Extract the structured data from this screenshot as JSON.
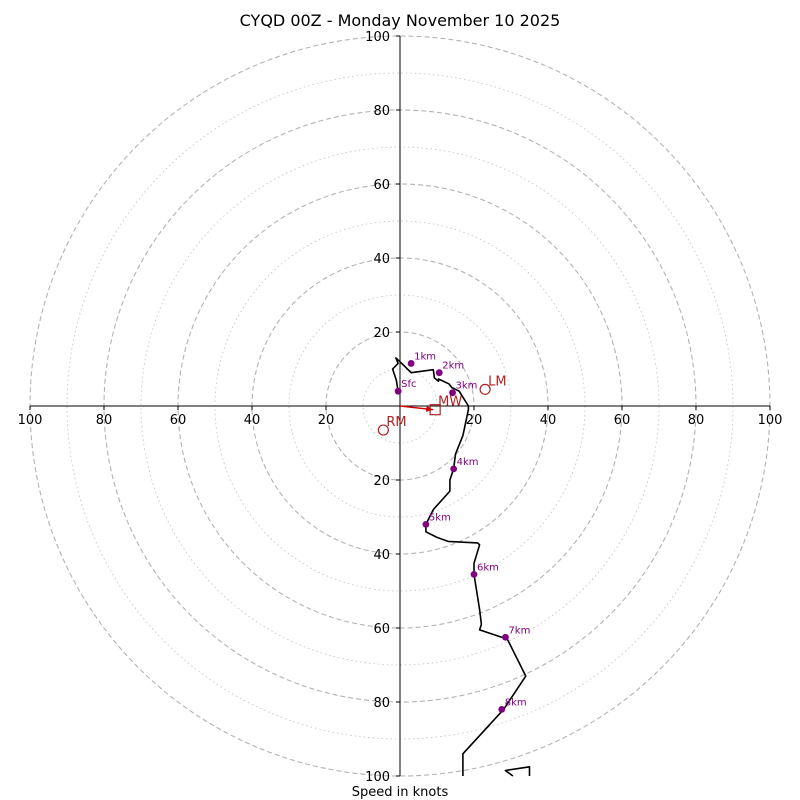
{
  "chart_data": {
    "type": "hodograph",
    "title": "CYQD 00Z - Monday November 10 2025",
    "xlabel": "Speed in knots",
    "range_max": 100,
    "ring_major": [
      20,
      40,
      60,
      80,
      100
    ],
    "ring_minor": [
      10,
      30,
      50,
      70,
      90
    ],
    "tick_labels": {
      "left": [
        "100",
        "80",
        "60",
        "40",
        "20"
      ],
      "right": [
        "20",
        "40",
        "60",
        "80",
        "100"
      ],
      "top": [
        "100",
        "80",
        "60",
        "40",
        "20"
      ],
      "bottom": [
        "20",
        "40",
        "60",
        "80",
        "100"
      ]
    },
    "trace": [
      [
        -0.5,
        4
      ],
      [
        -1,
        7
      ],
      [
        -2,
        10
      ],
      [
        -0.5,
        11.5
      ],
      [
        -1.1,
        13
      ],
      [
        1,
        11
      ],
      [
        3,
        9
      ],
      [
        9,
        9.8
      ],
      [
        9.3,
        7.6
      ],
      [
        10.4,
        6.7
      ],
      [
        10.4,
        7.3
      ],
      [
        13.2,
        6
      ],
      [
        14,
        5
      ],
      [
        16,
        4
      ],
      [
        18.5,
        0
      ],
      [
        18.5,
        -1
      ],
      [
        17,
        -8
      ],
      [
        15,
        -13
      ],
      [
        14.5,
        -17
      ],
      [
        13.5,
        -20
      ],
      [
        13.5,
        -23
      ],
      [
        9,
        -28
      ],
      [
        7,
        -32
      ],
      [
        7,
        -34
      ],
      [
        10,
        -35.5
      ],
      [
        13,
        -36.6
      ],
      [
        21,
        -37
      ],
      [
        21.5,
        -37.5
      ],
      [
        20,
        -42.5
      ],
      [
        20,
        -45.5
      ],
      [
        21.5,
        -55
      ],
      [
        22,
        -59
      ],
      [
        21.5,
        -60.5
      ],
      [
        29,
        -63
      ],
      [
        34,
        -73
      ],
      [
        28,
        -82
      ],
      [
        17,
        -94
      ],
      [
        17,
        -100
      ]
    ],
    "trace_tail": [
      [
        35,
        -100
      ],
      [
        35,
        -97.5
      ],
      [
        28.5,
        -98.5
      ],
      [
        30.5,
        -100
      ]
    ],
    "height_markers": [
      {
        "label": "Sfc",
        "u": -0.5,
        "v": 4
      },
      {
        "label": "1km",
        "u": 3,
        "v": 11.5
      },
      {
        "label": "2km",
        "u": 10.6,
        "v": 9
      },
      {
        "label": "3km",
        "u": 14.2,
        "v": 3.6
      },
      {
        "label": "4km",
        "u": 14.5,
        "v": -17
      },
      {
        "label": "5km",
        "u": 7,
        "v": -32
      },
      {
        "label": "6km",
        "u": 20,
        "v": -45.5
      },
      {
        "label": "7km",
        "u": 28.5,
        "v": -62.5
      },
      {
        "label": "8km",
        "u": 27.5,
        "v": -82
      }
    ],
    "motion_markers": [
      {
        "label": "LM",
        "u": 23,
        "v": 4.5,
        "shape": "circle"
      },
      {
        "label": "RM",
        "u": -4.5,
        "v": -6.5,
        "shape": "circle"
      },
      {
        "label": "MW",
        "u": 9.5,
        "v": -1,
        "shape": "square"
      }
    ],
    "mean_wind_arrow": {
      "from": [
        0,
        0
      ],
      "to": [
        9,
        -1
      ]
    },
    "colors": {
      "trace": "#000000",
      "height_marker": "#800080",
      "motion": "#b22222",
      "arrow": "#d40000",
      "ring": "#b3b3b3"
    }
  }
}
